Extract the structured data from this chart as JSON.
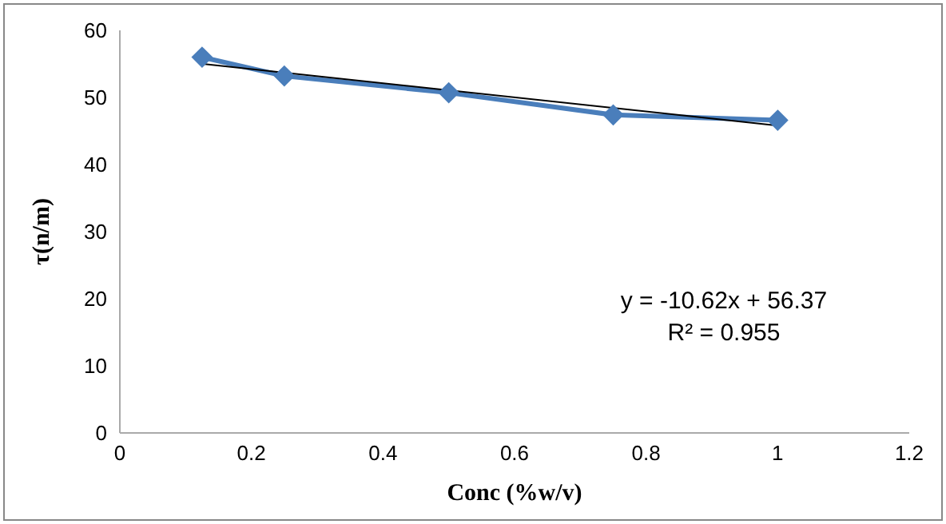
{
  "chart_data": {
    "type": "line",
    "xlabel": "Conc (%w/v)",
    "ylabel": "τ(n/m)",
    "xlim": [
      0,
      1.2
    ],
    "xticks": [
      0,
      0.2,
      0.4,
      0.6,
      0.8,
      1,
      1.2
    ],
    "ylim": [
      0,
      60
    ],
    "yticks": [
      0,
      10,
      20,
      30,
      40,
      50,
      60
    ],
    "grid": false,
    "legend": false,
    "series": [
      {
        "color": "#4a7ebb",
        "marker": "diamond",
        "x": [
          0.125,
          0.25,
          0.5,
          0.75,
          1
        ],
        "values": [
          56,
          53.2,
          50.7,
          47.4,
          46.6
        ]
      },
      {
        "color": "#000000",
        "marker": "none",
        "x": [
          0.125,
          1
        ],
        "values": [
          55,
          45.8
        ]
      }
    ],
    "annotations": [
      "y = -10.62x + 56.37",
      "R² = 0.955"
    ]
  }
}
